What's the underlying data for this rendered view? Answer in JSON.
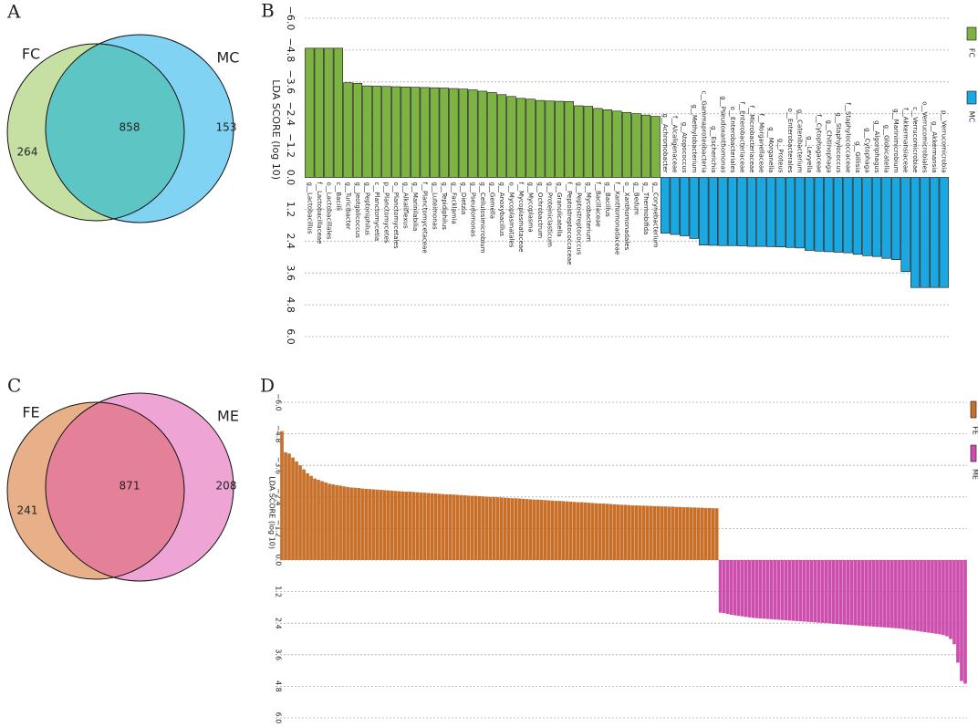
{
  "chart_data": [
    {
      "type": "venn",
      "panel": "A",
      "sets": [
        {
          "name": "FC",
          "color": "#c6e0a4"
        },
        {
          "name": "MC",
          "color": "#80d3f2"
        }
      ],
      "values": [
        264,
        858,
        153
      ],
      "overlap_color": "#5ec5c5"
    },
    {
      "type": "bar",
      "panel": "B",
      "ylabel": "LDA SCORE (log 10)",
      "ylim": [
        -6.0,
        6.0
      ],
      "yticks": [
        {
          "value": -6.0,
          "label": "−6.0"
        },
        {
          "value": -4.8,
          "label": "−4.8"
        },
        {
          "value": -3.6,
          "label": "−3.6"
        },
        {
          "value": -2.4,
          "label": "−2.4"
        },
        {
          "value": -1.2,
          "label": "−1.2"
        },
        {
          "value": 0,
          "label": "0.0"
        },
        {
          "value": 1.2,
          "label": "1.2"
        },
        {
          "value": 2.4,
          "label": "2.4"
        },
        {
          "value": 3.6,
          "label": "3.6"
        },
        {
          "value": 4.8,
          "label": "4.8"
        },
        {
          "value": 6.0,
          "label": "6.0"
        }
      ],
      "grid": true,
      "series": [
        {
          "name": "FC",
          "color": "#7cb342",
          "categories": [
            "g__Lactobacillus",
            "f__Lactobacillaceae",
            "o__Lactobacillales",
            "c__Bacilli",
            "g__Turicibacter",
            "g__Jeotgalicoccus",
            "g__Peptoniphilus",
            "c__Planctomycetia",
            "p__Planctomycetes",
            "o__Planctomycetales",
            "g__Alkaliflexus",
            "g__Marinilabilia",
            "f__Planctomycetaceae",
            "g__Luteimonas",
            "g__Tepidiphilus",
            "g__Facklamia",
            "g__Dietzia",
            "g__Pseudomonas",
            "g__Cellulosimicrobium",
            "g__Gemella",
            "g__Anoxybacillus",
            "o__Mycoplasmatales",
            "f__Mycoplasmataceae",
            "g__Mycoplasma",
            "g__Ochrobactrum",
            "g__Proteiniclasticum",
            "g__Granulicatella",
            "f__Peptostreptococcaceae",
            "g__Peptostreptococcus",
            "g__Mycobacterium",
            "f__Bacillaceae",
            "g__Bacillus",
            "f__Xanthomonadaceae",
            "o__Xanthomonadales",
            "g__Bedum",
            "g__Thermobifida",
            "g__Corynebacterium"
          ],
          "values": [
            -4.87,
            -4.87,
            -4.87,
            -4.87,
            -3.57,
            -3.55,
            -3.45,
            -3.44,
            -3.43,
            -3.42,
            -3.41,
            -3.4,
            -3.39,
            -3.38,
            -3.37,
            -3.35,
            -3.33,
            -3.3,
            -3.25,
            -3.2,
            -3.12,
            -3.05,
            -2.98,
            -2.95,
            -2.9,
            -2.88,
            -2.87,
            -2.86,
            -2.7,
            -2.68,
            -2.6,
            -2.55,
            -2.5,
            -2.45,
            -2.4,
            -2.35,
            -2.3
          ]
        },
        {
          "name": "MC",
          "color": "#1ba7e0",
          "categories": [
            "g__Achromobacter",
            "f__Alcaligenaceae",
            "g__Atopococcus",
            "g__Methylobacterium",
            "c__Gammaproteobacteria",
            "g__Escherichia",
            "g__Pseudoxanthomonas",
            "o__Enterobacteriales",
            "f__Enterobacteriaceae",
            "f__Microbacteriaceae",
            "f__Morganellaceae",
            "g__Morganella",
            "g__Proteus",
            "o__Enterobacterales",
            "g__Catenibacterium",
            "g__Levyella",
            "f__Cytophagaceae",
            "g__Chitinophaga",
            "g__Staphylococcus",
            "f__Staphylococcaceae",
            "g__Gillisia",
            "g__Cytophaga",
            "g__Algoriphagus",
            "g__Globicatella",
            "g__Marinimicrobium",
            "f__Akkermansiaceae",
            "c__Verrucomicrobiae",
            "o__Verrucomicrobiales",
            "g__Akkermansia",
            "p__Verrucomicrobia"
          ],
          "values": [
            2.1,
            2.15,
            2.2,
            2.3,
            2.55,
            2.56,
            2.57,
            2.57,
            2.58,
            2.6,
            2.6,
            2.61,
            2.62,
            2.64,
            2.66,
            2.75,
            2.78,
            2.8,
            2.82,
            2.84,
            2.9,
            2.95,
            2.98,
            3.05,
            3.1,
            3.55,
            4.15,
            4.15,
            4.15,
            4.15
          ]
        }
      ]
    },
    {
      "type": "venn",
      "panel": "C",
      "sets": [
        {
          "name": "FE",
          "color": "#e8b088"
        },
        {
          "name": "ME",
          "color": "#eea4d4"
        }
      ],
      "values": [
        241,
        871,
        208
      ],
      "overlap_color": "#e48098"
    },
    {
      "type": "bar",
      "panel": "D",
      "ylabel": "LDA SCORE (log 10)",
      "ylim": [
        -6.0,
        6.0
      ],
      "yticks": [
        {
          "value": -6.0,
          "label": "−6.0"
        },
        {
          "value": -4.8,
          "label": "−4.8"
        },
        {
          "value": -3.6,
          "label": "−3.6"
        },
        {
          "value": -2.4,
          "label": "−2.4"
        },
        {
          "value": -1.2,
          "label": "−1.2"
        },
        {
          "value": 0,
          "label": "0.0"
        },
        {
          "value": 1.2,
          "label": "1.2"
        },
        {
          "value": 2.4,
          "label": "2.4"
        },
        {
          "value": 3.6,
          "label": "3.6"
        },
        {
          "value": 4.8,
          "label": "4.8"
        },
        {
          "value": 6.0,
          "label": "6.0"
        }
      ],
      "grid": true,
      "series": [
        {
          "name": "FE",
          "color": "#c8702a",
          "values": [
            -4.9,
            -4.1,
            -4.05,
            -3.9,
            -3.75,
            -3.6,
            -3.45,
            -3.3,
            -3.2,
            -3.1,
            -3.05,
            -3.0,
            -2.95,
            -2.9,
            -2.88,
            -2.85,
            -2.83,
            -2.8,
            -2.78,
            -2.76,
            -2.75,
            -2.74,
            -2.72,
            -2.71,
            -2.7,
            -2.69,
            -2.68,
            -2.67,
            -2.66,
            -2.65,
            -2.64,
            -2.63,
            -2.62,
            -2.61,
            -2.6,
            -2.6,
            -2.59,
            -2.58,
            -2.57,
            -2.56,
            -2.55,
            -2.54,
            -2.53,
            -2.52,
            -2.51,
            -2.5,
            -2.5,
            -2.49,
            -2.48,
            -2.47,
            -2.46,
            -2.45,
            -2.44,
            -2.44,
            -2.43,
            -2.42,
            -2.41,
            -2.4,
            -2.4,
            -2.39,
            -2.38,
            -2.37,
            -2.36,
            -2.35,
            -2.35,
            -2.34,
            -2.33,
            -2.32,
            -2.31,
            -2.3,
            -2.3,
            -2.29,
            -2.28,
            -2.27,
            -2.26,
            -2.25,
            -2.25,
            -2.24,
            -2.23,
            -2.22,
            -2.21,
            -2.2,
            -2.2,
            -2.19,
            -2.18,
            -2.17,
            -2.16,
            -2.15,
            -2.15,
            -2.14,
            -2.13,
            -2.12,
            -2.11,
            -2.1,
            -2.1,
            -2.09,
            -2.08,
            -2.08,
            -2.07,
            -2.07,
            -2.06,
            -2.06,
            -2.05,
            -2.05,
            -2.04,
            -2.04,
            -2.03,
            -2.03,
            -2.02,
            -2.02,
            -2.01,
            -2.01,
            -2.0,
            -2.0,
            -1.99,
            -1.99,
            -1.98,
            -1.98,
            -1.97,
            -1.97
          ]
        },
        {
          "name": "ME",
          "color": "#cc4fae",
          "values": [
            2.0,
            2.02,
            2.05,
            2.08,
            2.1,
            2.12,
            2.14,
            2.16,
            2.18,
            2.2,
            2.21,
            2.22,
            2.23,
            2.24,
            2.25,
            2.26,
            2.27,
            2.28,
            2.29,
            2.3,
            2.31,
            2.32,
            2.33,
            2.34,
            2.35,
            2.36,
            2.37,
            2.38,
            2.39,
            2.4,
            2.41,
            2.42,
            2.43,
            2.44,
            2.45,
            2.46,
            2.47,
            2.48,
            2.49,
            2.5,
            2.51,
            2.52,
            2.53,
            2.54,
            2.55,
            2.56,
            2.57,
            2.58,
            2.59,
            2.6,
            2.62,
            2.64,
            2.66,
            2.68,
            2.7,
            2.72,
            2.74,
            2.76,
            2.78,
            2.8,
            2.82,
            2.85,
            2.9,
            3.0,
            3.2,
            3.9,
            4.6,
            4.7
          ]
        }
      ]
    }
  ]
}
